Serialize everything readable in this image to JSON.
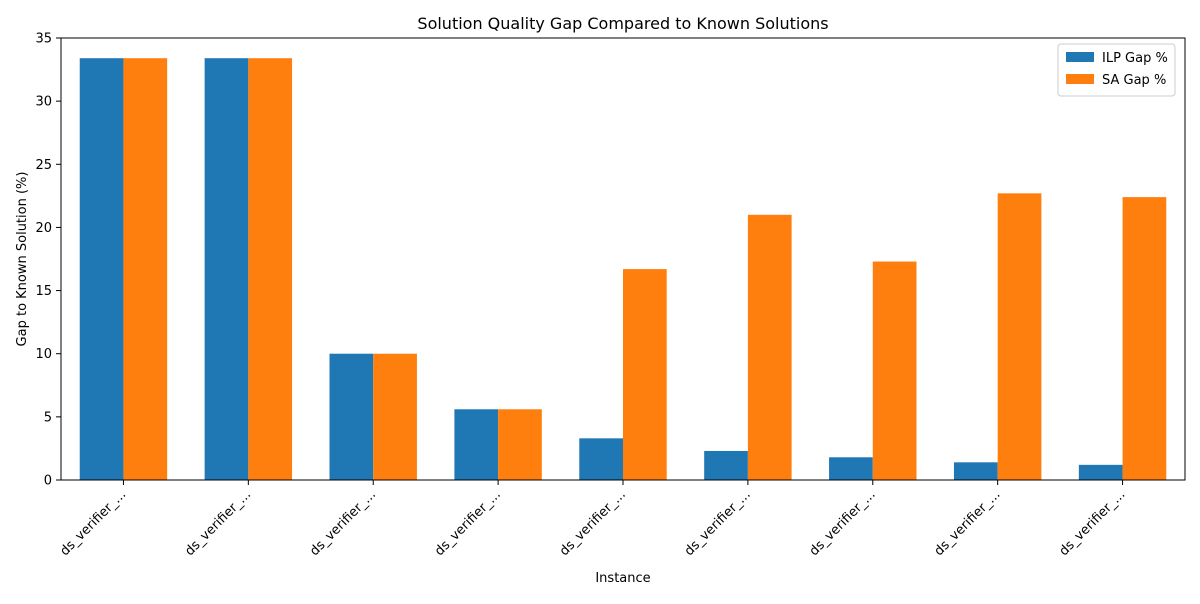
{
  "chart_data": {
    "type": "bar",
    "title": "Solution Quality Gap Compared to Known Solutions",
    "xlabel": "Instance",
    "ylabel": "Gap to Known Solution (%)",
    "categories": [
      "ds_verifier_...",
      "ds_verifier_...",
      "ds_verifier_...",
      "ds_verifier_...",
      "ds_verifier_...",
      "ds_verifier_...",
      "ds_verifier_...",
      "ds_verifier_...",
      "ds_verifier_..."
    ],
    "series": [
      {
        "name": "ILP Gap %",
        "color": "#1f77b4",
        "values": [
          33.4,
          33.4,
          10.0,
          5.6,
          3.3,
          2.3,
          1.8,
          1.4,
          1.2
        ]
      },
      {
        "name": "SA Gap %",
        "color": "#ff7f0e",
        "values": [
          33.4,
          33.4,
          10.0,
          5.6,
          16.7,
          21.0,
          17.3,
          22.7,
          22.4
        ]
      }
    ],
    "ylim": [
      0,
      35
    ],
    "yticks": [
      0,
      5,
      10,
      15,
      20,
      25,
      30,
      35
    ],
    "grid": false,
    "legend_position": "top-right"
  }
}
